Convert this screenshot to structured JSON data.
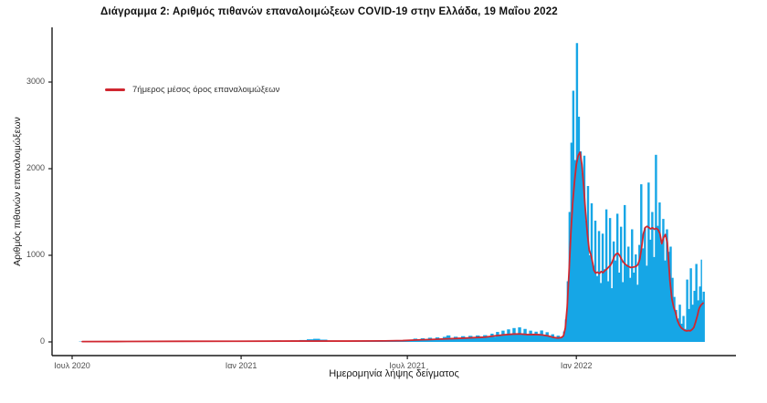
{
  "colors": {
    "bar": "#16a6e6",
    "line": "#d02730",
    "axis": "#1a1a1a",
    "tick_text": "#4d4d4d"
  },
  "chart_data": {
    "type": "bar",
    "title": "Διάγραμμα 2: Αριθμός πιθανών επαναλοιμώξεων COVID-19 στην Ελλάδα, 19 Μαΐου 2022",
    "xlabel": "Ημερομηνία λήψης δείγματος",
    "ylabel": "Αριθμός πιθανών επαναλοιμώξεων",
    "legend": "7ήμερος μέσος όρος επαναλοιμώξεων",
    "x_start_date": "2020-07-01",
    "x_end_date": "2022-05-19",
    "x_ticks": [
      {
        "label": "Ιουλ 2020",
        "day": 0
      },
      {
        "label": "Ιαν 2021",
        "day": 184
      },
      {
        "label": "Ιουλ 2021",
        "day": 365
      },
      {
        "label": "Ιαν 2022",
        "day": 549
      }
    ],
    "y_ticks": [
      0,
      1000,
      2000,
      3000
    ],
    "ylim": [
      0,
      3500
    ],
    "grid": false,
    "legend_position": "upper-left-inside",
    "bars_unit": "[day_offset_from_2020-07-01, daily_probable_reinfections]",
    "bars": [
      [
        8,
        4
      ],
      [
        18,
        6
      ],
      [
        28,
        4
      ],
      [
        38,
        8
      ],
      [
        48,
        5
      ],
      [
        58,
        9
      ],
      [
        68,
        6
      ],
      [
        78,
        10
      ],
      [
        88,
        7
      ],
      [
        98,
        11
      ],
      [
        108,
        8
      ],
      [
        118,
        12
      ],
      [
        128,
        8
      ],
      [
        138,
        13
      ],
      [
        148,
        9
      ],
      [
        158,
        14
      ],
      [
        168,
        10
      ],
      [
        178,
        15
      ],
      [
        188,
        10
      ],
      [
        198,
        16
      ],
      [
        208,
        11
      ],
      [
        218,
        17
      ],
      [
        228,
        12
      ],
      [
        238,
        18
      ],
      [
        248,
        22
      ],
      [
        256,
        30
      ],
      [
        263,
        36
      ],
      [
        270,
        26
      ],
      [
        278,
        16
      ],
      [
        288,
        12
      ],
      [
        298,
        15
      ],
      [
        308,
        11
      ],
      [
        318,
        14
      ],
      [
        328,
        10
      ],
      [
        338,
        13
      ],
      [
        348,
        16
      ],
      [
        358,
        20
      ],
      [
        366,
        24
      ],
      [
        372,
        38
      ],
      [
        376,
        20
      ],
      [
        380,
        42
      ],
      [
        384,
        24
      ],
      [
        388,
        48
      ],
      [
        392,
        28
      ],
      [
        396,
        52
      ],
      [
        400,
        30
      ],
      [
        404,
        58
      ],
      [
        408,
        75
      ],
      [
        412,
        36
      ],
      [
        416,
        60
      ],
      [
        420,
        40
      ],
      [
        424,
        66
      ],
      [
        428,
        44
      ],
      [
        432,
        70
      ],
      [
        436,
        46
      ],
      [
        440,
        74
      ],
      [
        444,
        50
      ],
      [
        448,
        78
      ],
      [
        452,
        55
      ],
      [
        456,
        95
      ],
      [
        459,
        60
      ],
      [
        462,
        115
      ],
      [
        465,
        70
      ],
      [
        468,
        130
      ],
      [
        471,
        78
      ],
      [
        474,
        145
      ],
      [
        477,
        85
      ],
      [
        480,
        160
      ],
      [
        483,
        95
      ],
      [
        486,
        168
      ],
      [
        489,
        100
      ],
      [
        492,
        150
      ],
      [
        495,
        88
      ],
      [
        498,
        130
      ],
      [
        501,
        80
      ],
      [
        504,
        118
      ],
      [
        507,
        92
      ],
      [
        510,
        132
      ],
      [
        513,
        78
      ],
      [
        516,
        112
      ],
      [
        519,
        64
      ],
      [
        522,
        88
      ],
      [
        525,
        52
      ],
      [
        528,
        72
      ],
      [
        531,
        46
      ],
      [
        533,
        60
      ],
      [
        535,
        120
      ],
      [
        537,
        260
      ],
      [
        539,
        700
      ],
      [
        541,
        1500
      ],
      [
        543,
        2300
      ],
      [
        545,
        2900
      ],
      [
        547,
        2100
      ],
      [
        549,
        3450
      ],
      [
        551,
        2600
      ],
      [
        553,
        2200
      ],
      [
        555,
        1950
      ],
      [
        557,
        2150
      ],
      [
        559,
        1400
      ],
      [
        561,
        1800
      ],
      [
        563,
        1000
      ],
      [
        565,
        1600
      ],
      [
        567,
        880
      ],
      [
        569,
        1400
      ],
      [
        571,
        760
      ],
      [
        573,
        1280
      ],
      [
        575,
        680
      ],
      [
        577,
        1250
      ],
      [
        579,
        840
      ],
      [
        581,
        1530
      ],
      [
        583,
        700
      ],
      [
        585,
        1430
      ],
      [
        587,
        620
      ],
      [
        589,
        1160
      ],
      [
        591,
        940
      ],
      [
        593,
        1480
      ],
      [
        595,
        800
      ],
      [
        597,
        1330
      ],
      [
        599,
        690
      ],
      [
        601,
        1580
      ],
      [
        603,
        880
      ],
      [
        605,
        1100
      ],
      [
        607,
        740
      ],
      [
        609,
        1300
      ],
      [
        611,
        800
      ],
      [
        613,
        1010
      ],
      [
        615,
        660
      ],
      [
        617,
        1120
      ],
      [
        619,
        1820
      ],
      [
        621,
        1080
      ],
      [
        623,
        1320
      ],
      [
        625,
        880
      ],
      [
        627,
        1840
      ],
      [
        629,
        1180
      ],
      [
        631,
        1500
      ],
      [
        633,
        980
      ],
      [
        635,
        2160
      ],
      [
        637,
        1340
      ],
      [
        639,
        1610
      ],
      [
        641,
        1130
      ],
      [
        643,
        1420
      ],
      [
        645,
        940
      ],
      [
        647,
        1300
      ],
      [
        649,
        1040
      ],
      [
        651,
        1100
      ],
      [
        653,
        740
      ],
      [
        655,
        520
      ],
      [
        657,
        370
      ],
      [
        659,
        270
      ],
      [
        661,
        430
      ],
      [
        663,
        210
      ],
      [
        665,
        300
      ],
      [
        667,
        150
      ],
      [
        669,
        720
      ],
      [
        671,
        380
      ],
      [
        673,
        850
      ],
      [
        675,
        430
      ],
      [
        677,
        590
      ],
      [
        679,
        900
      ],
      [
        681,
        480
      ],
      [
        683,
        640
      ],
      [
        685,
        950
      ],
      [
        686,
        480
      ],
      [
        687,
        580
      ]
    ],
    "line_unit": "[day_offset_from_2020-07-01, 7day_average]",
    "line": [
      [
        11,
        4
      ],
      [
        60,
        5
      ],
      [
        120,
        7
      ],
      [
        180,
        8
      ],
      [
        240,
        10
      ],
      [
        300,
        10
      ],
      [
        340,
        12
      ],
      [
        360,
        15
      ],
      [
        375,
        22
      ],
      [
        390,
        28
      ],
      [
        405,
        34
      ],
      [
        420,
        40
      ],
      [
        435,
        48
      ],
      [
        450,
        55
      ],
      [
        460,
        70
      ],
      [
        470,
        82
      ],
      [
        480,
        90
      ],
      [
        488,
        92
      ],
      [
        496,
        84
      ],
      [
        504,
        86
      ],
      [
        512,
        80
      ],
      [
        518,
        70
      ],
      [
        524,
        52
      ],
      [
        529,
        45
      ],
      [
        533,
        52
      ],
      [
        535,
        70
      ],
      [
        537,
        160
      ],
      [
        539,
        400
      ],
      [
        541,
        800
      ],
      [
        543,
        1250
      ],
      [
        545,
        1600
      ],
      [
        547,
        1850
      ],
      [
        549,
        2050
      ],
      [
        551,
        2150
      ],
      [
        553,
        2190
      ],
      [
        555,
        2050
      ],
      [
        557,
        1800
      ],
      [
        559,
        1500
      ],
      [
        561,
        1250
      ],
      [
        563,
        1060
      ],
      [
        565,
        1000
      ],
      [
        567,
        900
      ],
      [
        568,
        830
      ],
      [
        570,
        795
      ],
      [
        572,
        805
      ],
      [
        574,
        790
      ],
      [
        576,
        812
      ],
      [
        578,
        800
      ],
      [
        580,
        822
      ],
      [
        582,
        840
      ],
      [
        584,
        862
      ],
      [
        586,
        882
      ],
      [
        588,
        922
      ],
      [
        590,
        980
      ],
      [
        592,
        1012
      ],
      [
        594,
        1025
      ],
      [
        596,
        1000
      ],
      [
        598,
        960
      ],
      [
        600,
        922
      ],
      [
        602,
        900
      ],
      [
        604,
        882
      ],
      [
        606,
        870
      ],
      [
        608,
        860
      ],
      [
        610,
        862
      ],
      [
        612,
        866
      ],
      [
        614,
        872
      ],
      [
        616,
        892
      ],
      [
        618,
        952
      ],
      [
        620,
        1080
      ],
      [
        622,
        1250
      ],
      [
        624,
        1320
      ],
      [
        626,
        1335
      ],
      [
        628,
        1320
      ],
      [
        630,
        1305
      ],
      [
        632,
        1318
      ],
      [
        634,
        1300
      ],
      [
        636,
        1312
      ],
      [
        638,
        1295
      ],
      [
        640,
        1250
      ],
      [
        642,
        1135
      ],
      [
        644,
        1205
      ],
      [
        646,
        1240
      ],
      [
        648,
        1150
      ],
      [
        649,
        1000
      ],
      [
        651,
        700
      ],
      [
        653,
        500
      ],
      [
        655,
        400
      ],
      [
        657,
        340
      ],
      [
        659,
        250
      ],
      [
        661,
        200
      ],
      [
        663,
        165
      ],
      [
        665,
        148
      ],
      [
        667,
        133
      ],
      [
        669,
        127
      ],
      [
        671,
        132
      ],
      [
        673,
        128
      ],
      [
        675,
        143
      ],
      [
        677,
        168
      ],
      [
        679,
        235
      ],
      [
        681,
        310
      ],
      [
        682,
        360
      ],
      [
        683,
        392
      ],
      [
        684,
        412
      ],
      [
        685,
        428
      ],
      [
        686,
        438
      ],
      [
        687,
        448
      ]
    ]
  }
}
